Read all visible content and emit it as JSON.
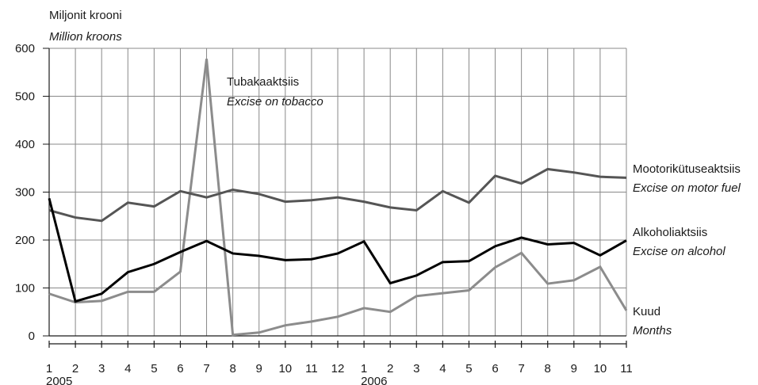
{
  "chart_data": {
    "type": "line",
    "ylabel": "Miljonit krooni",
    "ylabel_en": "Million kroons",
    "xlabel": "Kuud",
    "xlabel_en": "Months",
    "ylim": [
      0,
      600
    ],
    "yticks": [
      0,
      100,
      200,
      300,
      400,
      500,
      600
    ],
    "grid": true,
    "x_labels": [
      "1",
      "2",
      "3",
      "4",
      "5",
      "6",
      "7",
      "8",
      "9",
      "10",
      "11",
      "12",
      "1",
      "2",
      "3",
      "4",
      "5",
      "6",
      "7",
      "8",
      "9",
      "10",
      "11"
    ],
    "year_labels": [
      {
        "index": 0,
        "label": "2005"
      },
      {
        "index": 12,
        "label": "2006"
      }
    ],
    "series": [
      {
        "name": "Mootorikütuseaktsiis",
        "name_en": "Excise on motor fuel",
        "color": "#555555",
        "values": [
          262,
          247,
          240,
          278,
          270,
          302,
          289,
          305,
          296,
          280,
          283,
          289,
          280,
          268,
          262,
          302,
          278,
          334,
          318,
          348,
          341,
          332,
          330
        ]
      },
      {
        "name": "Alkoholiaktsiis",
        "name_en": "Excise on alcohol",
        "color": "#000000",
        "values": [
          287,
          72,
          88,
          133,
          150,
          175,
          198,
          172,
          167,
          158,
          160,
          172,
          197,
          110,
          126,
          154,
          156,
          187,
          205,
          191,
          194,
          168,
          199
        ]
      },
      {
        "name": "Tubakaaktsiis",
        "name_en": "Excise on tobacco",
        "color": "#8c8c8c",
        "values": [
          88,
          70,
          73,
          92,
          92,
          134,
          578,
          2,
          7,
          22,
          30,
          40,
          58,
          50,
          83,
          89,
          95,
          143,
          173,
          109,
          116,
          144,
          53
        ]
      }
    ]
  }
}
